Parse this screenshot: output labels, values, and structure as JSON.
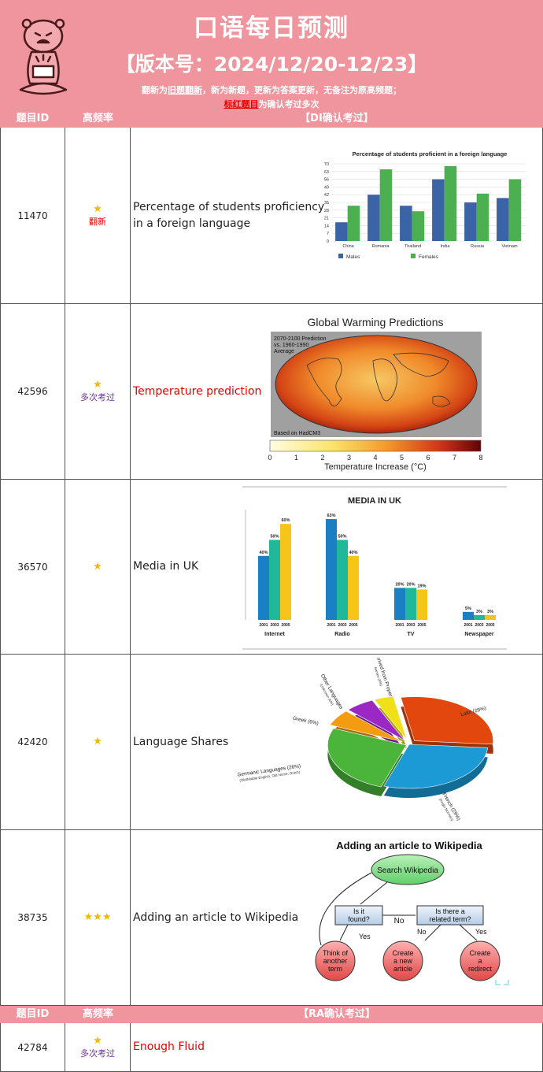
{
  "header": {
    "title": "口语每日预测",
    "version": "【版本号：2024/12/20-12/23】",
    "note_parts": [
      "翻新为",
      "旧题翻新",
      "，新为新题，更新为答案更新，无备注为原高频题；"
    ],
    "note2_red": "标红题目",
    "note2_rest": "为确认考过多次"
  },
  "section_di": {
    "col_id": "题目ID",
    "col_freq": "高频率",
    "col_topic": "【DI确认考过】"
  },
  "section_ra": {
    "col_id": "题目ID",
    "col_freq": "高频率",
    "col_topic": "【RA确认考过】"
  },
  "rows": [
    {
      "id": "11470",
      "stars": "★",
      "tag": "翻新",
      "title_line1": "Percentage of students proficiency",
      "title_line2": "in a foreign language"
    },
    {
      "id": "42596",
      "stars": "★",
      "tag": "多次考过",
      "title": "Temperature prediction"
    },
    {
      "id": "36570",
      "stars": "★",
      "title": "Media in UK"
    },
    {
      "id": "42420",
      "stars": "★",
      "title": "Language Shares"
    },
    {
      "id": "38735",
      "stars": "★★★",
      "title": "Adding an article to Wikipedia"
    },
    {
      "id": "42784",
      "stars": "★",
      "tag": "多次考过",
      "title": "Enough Fluid"
    }
  ],
  "chart_data": [
    {
      "type": "bar",
      "title": "Percentage of students proficient in a foreign language",
      "categories": [
        "China",
        "Romania",
        "Thailand",
        "India",
        "Russia",
        "Vietnam"
      ],
      "series": [
        {
          "name": "Males",
          "values": [
            17,
            42,
            32,
            56,
            35,
            39
          ],
          "color": "#3a64a6"
        },
        {
          "name": "Females",
          "values": [
            32,
            65,
            27,
            68,
            43,
            56
          ],
          "color": "#4caf50"
        }
      ],
      "yticks": [
        "0",
        "7",
        "14",
        "21",
        "28",
        "35",
        "42",
        "49",
        "56",
        "63",
        "70"
      ],
      "ylim": [
        0,
        70
      ]
    },
    {
      "type": "bar",
      "title": "MEDIA IN UK",
      "categories": [
        "Internet",
        "Radio",
        "TV",
        "Newspaper"
      ],
      "years": [
        "2001",
        "2003",
        "2005"
      ],
      "series": [
        {
          "name": "2001",
          "values": [
            40,
            63,
            20,
            5
          ],
          "labels": [
            "40%",
            "63%",
            "20%",
            "5%"
          ],
          "color": "#1b7fc4"
        },
        {
          "name": "2003",
          "values": [
            50,
            50,
            20,
            3
          ],
          "labels": [
            "50%",
            "50%",
            "20%",
            "3%"
          ],
          "color": "#1fb89a"
        },
        {
          "name": "2005",
          "values": [
            60,
            40,
            19,
            3
          ],
          "labels": [
            "60%",
            "40%",
            "19%",
            "3%"
          ],
          "color": "#f7c41a"
        }
      ],
      "ylim": [
        0,
        65
      ]
    },
    {
      "type": "pie",
      "slices": [
        {
          "label": "Latin (29%)",
          "value": 29,
          "color": "#e2470e"
        },
        {
          "label": "French (29%)",
          "sub": "(Anglo-Norman)",
          "value": 29,
          "color": "#1b9ad6"
        },
        {
          "label": "Germanic Languages (26%)",
          "sub": "(Old/Middle English, Old Norse, Dutch)",
          "value": 26,
          "color": "#4bb43a"
        },
        {
          "label": "Greek (6%)",
          "value": 6,
          "color": "#f39c12"
        },
        {
          "label": "Other Languages",
          "sub": "/Unknown (6%)",
          "value": 6,
          "color": "#9b27c4"
        },
        {
          "label": "Derived from Proper",
          "sub": "Names (4%)",
          "value": 4,
          "color": "#f0e01a"
        }
      ]
    }
  ],
  "temp_map": {
    "title": "Global Warming Predictions",
    "caption_lines": [
      "2070-2100 Prediction",
      "vs. 1960-1990",
      "Average"
    ],
    "footer": "Based on HadCM3",
    "scale": [
      "0",
      "1",
      "2",
      "3",
      "4",
      "5",
      "6",
      "7",
      "8"
    ],
    "scale_label": "Temperature Increase (°C)"
  },
  "wiki": {
    "title": "Adding an article to Wikipedia",
    "search": "Search Wikipedia",
    "found_l1": "Is it",
    "found_l2": "found?",
    "related_l1": "Is there a",
    "related_l2": "related term?",
    "no1": "No",
    "yes1": "Yes",
    "no2": "No",
    "yes2": "Yes",
    "think_l1": "Think of",
    "think_l2": "another",
    "think_l3": "term",
    "create_l1": "Create",
    "create_l2": "a new",
    "create_l3": "article",
    "redirect_l1": "Create",
    "redirect_l2": "a",
    "redirect_l3": "redirect"
  }
}
